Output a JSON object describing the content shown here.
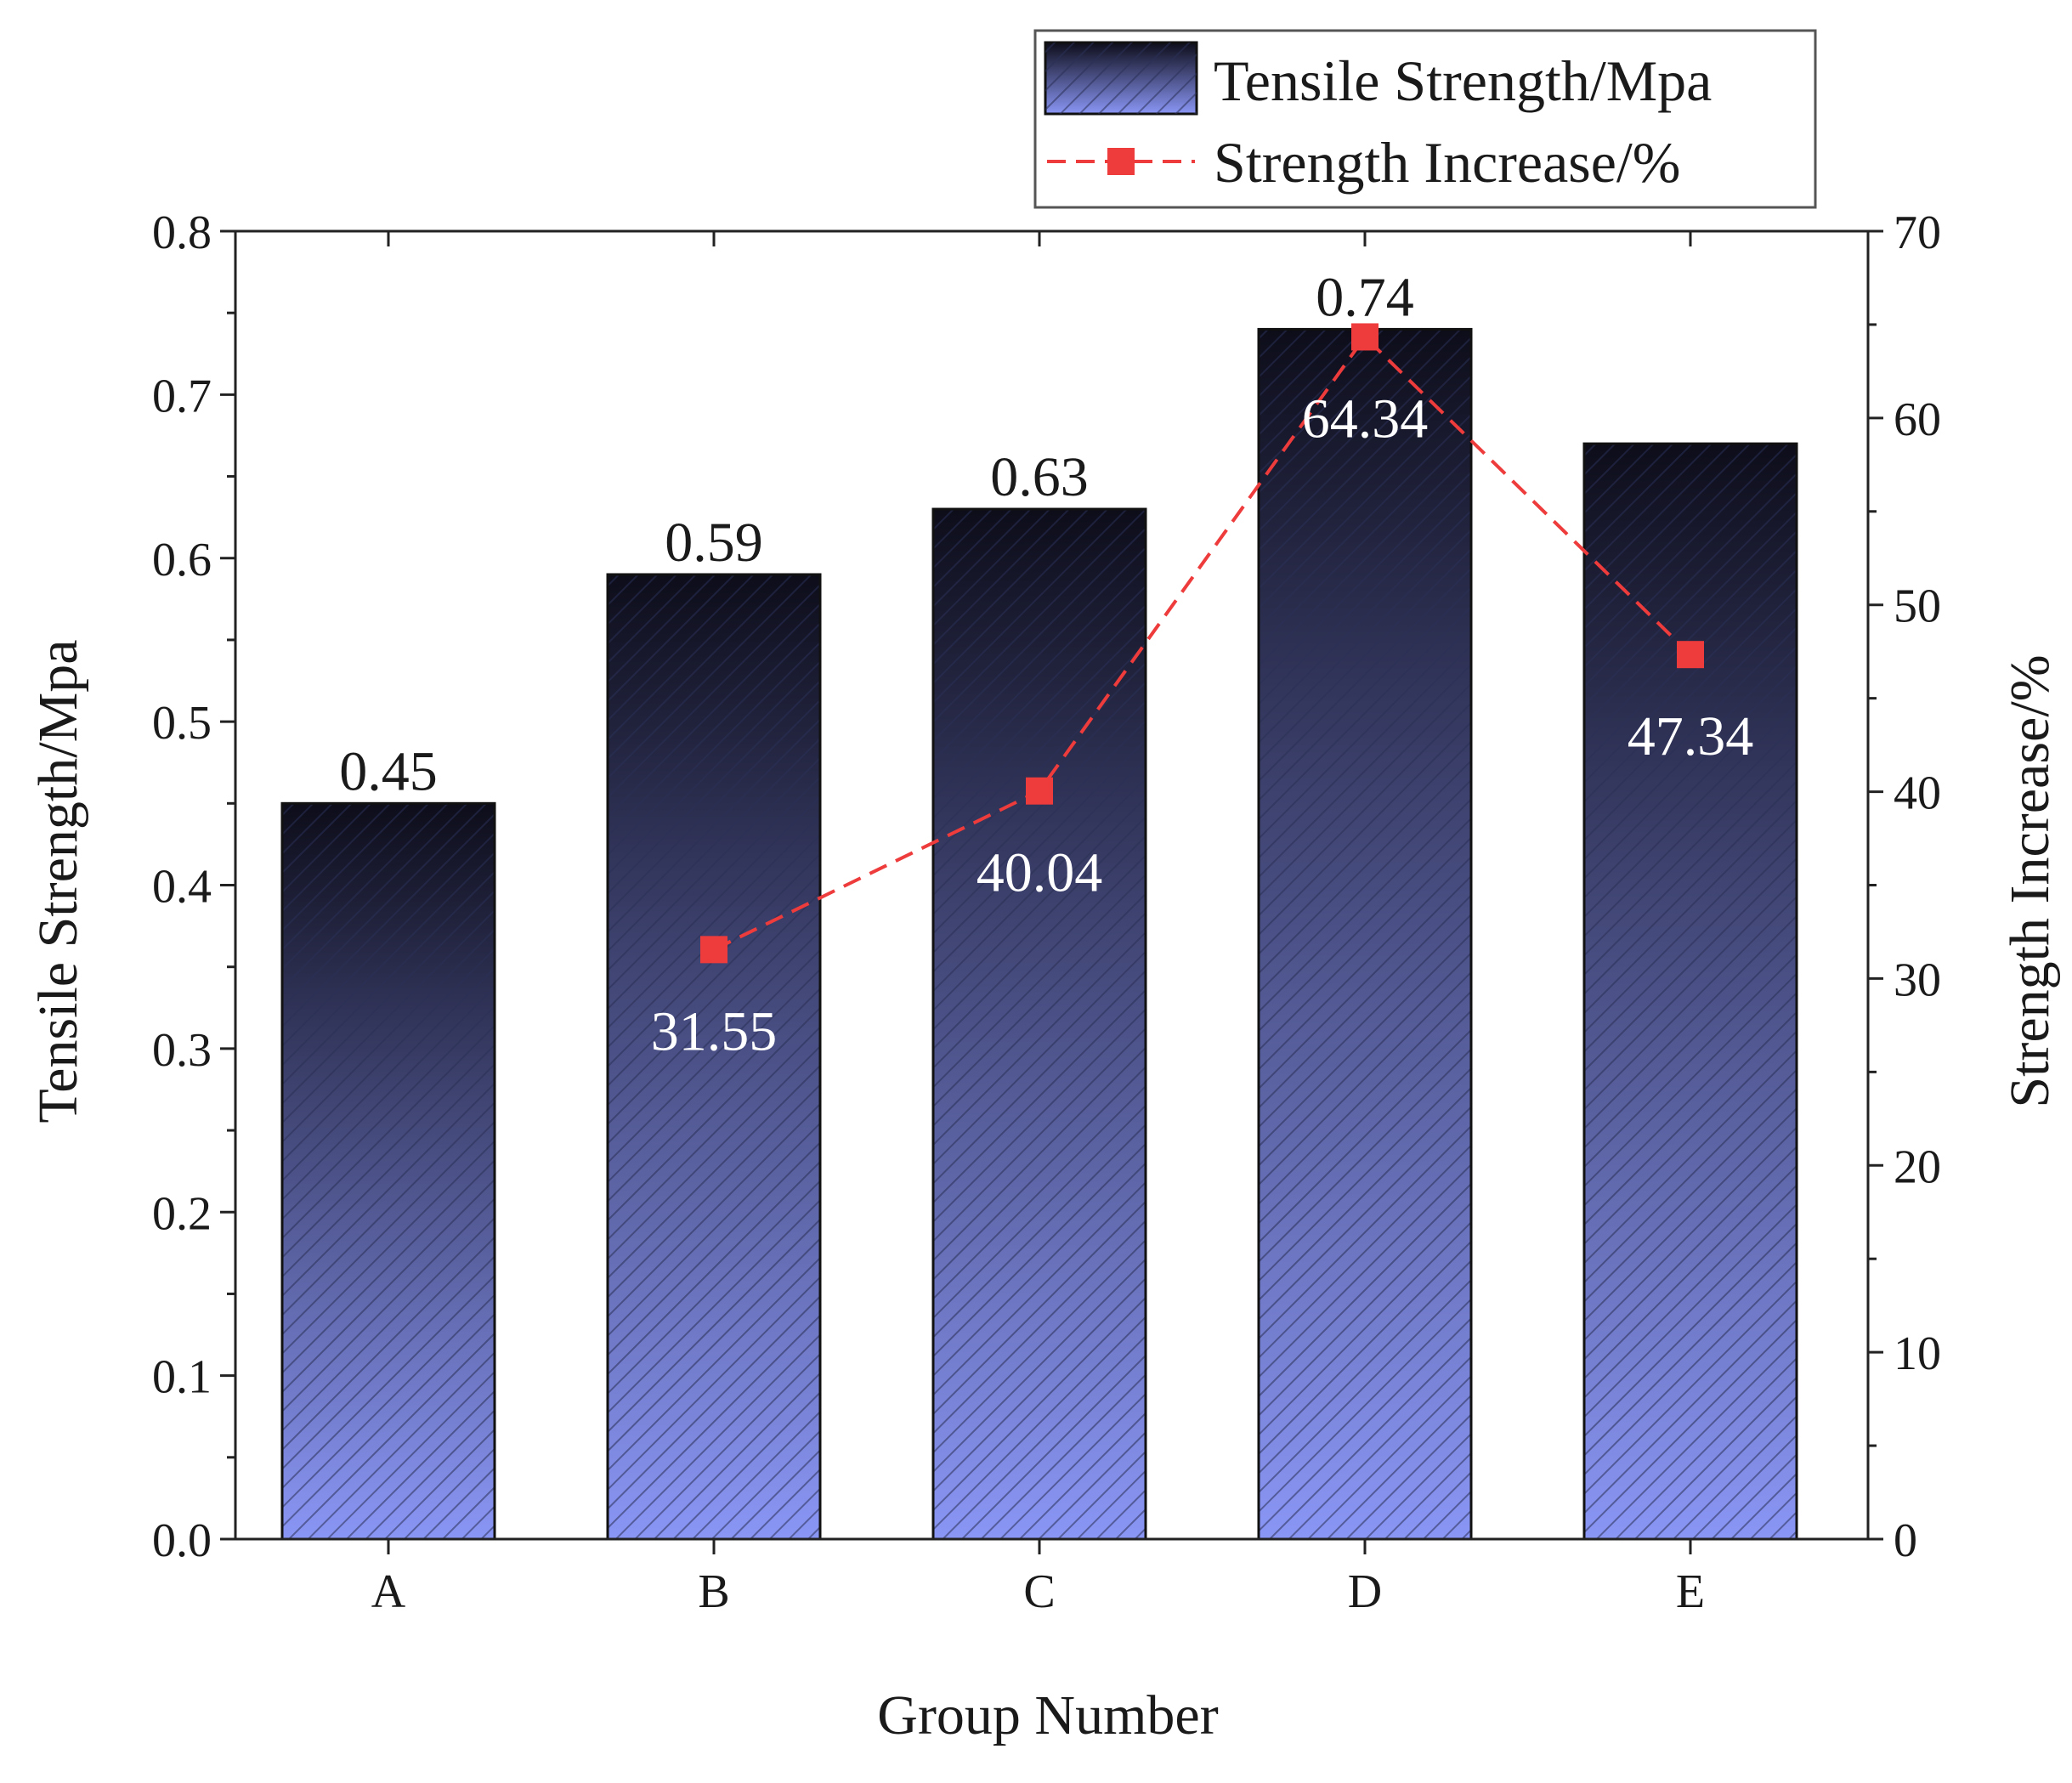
{
  "chart_data": {
    "type": "bar",
    "categories": [
      "A",
      "B",
      "C",
      "D",
      "E"
    ],
    "xlabel": "Group Number",
    "series": [
      {
        "name": "Tensile Strength/Mpa",
        "kind": "bar",
        "axis": "left",
        "values": [
          0.45,
          0.59,
          0.63,
          0.74,
          0.67
        ],
        "labels": [
          "0.45",
          "0.59",
          "0.63",
          "0.74",
          ""
        ]
      },
      {
        "name": "Strength Increase/%",
        "kind": "line",
        "axis": "right",
        "values": [
          null,
          31.55,
          40.04,
          64.34,
          47.34
        ],
        "labels": [
          "",
          "31.55",
          "40.04",
          "64.34",
          "47.34"
        ]
      }
    ],
    "y_left": {
      "label": "Tensile Strength/Mpa",
      "lim": [
        0,
        0.8
      ],
      "ticks": [
        "0.0",
        "0.1",
        "0.2",
        "0.3",
        "0.4",
        "0.5",
        "0.6",
        "0.7",
        "0.8"
      ]
    },
    "y_right": {
      "label": "Strength Increase/%",
      "lim": [
        0,
        70
      ],
      "ticks": [
        "0",
        "10",
        "20",
        "30",
        "40",
        "50",
        "60",
        "70"
      ]
    },
    "legend_position": "top-right",
    "grid": false,
    "colors": {
      "bar_top": "#0d0d1a",
      "bar_bottom": "#8a96f5",
      "bar_hatch": "#2a2f55",
      "line": "#ee3b3b",
      "marker": "#ee3b3b"
    }
  }
}
